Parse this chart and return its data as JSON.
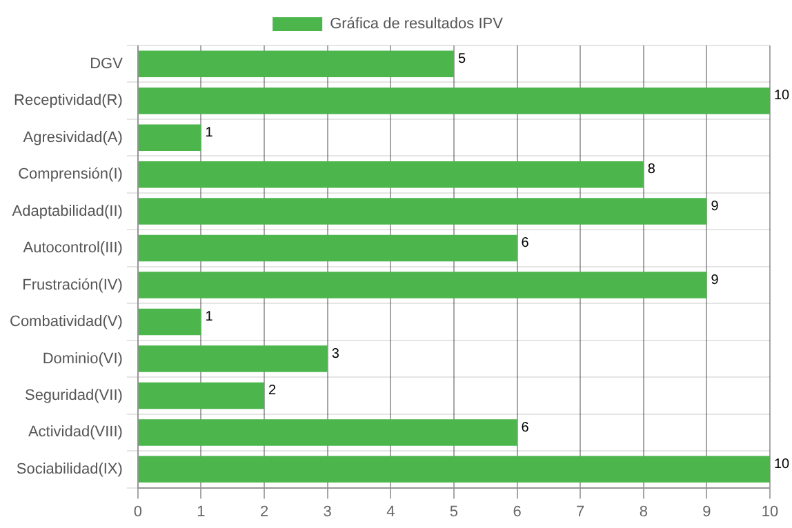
{
  "chart_data": {
    "type": "bar",
    "orientation": "horizontal",
    "categories": [
      "DGV",
      "Receptividad(R)",
      "Agresividad(A)",
      "Comprensión(I)",
      "Adaptabilidad(II)",
      "Autocontrol(III)",
      "Frustración(IV)",
      "Combatividad(V)",
      "Dominio(VI)",
      "Seguridad(VII)",
      "Actividad(VIII)",
      "Sociabilidad(IX)"
    ],
    "series": [
      {
        "name": "Gráfica de resultados IPV",
        "color": "#4cb54c",
        "values": [
          5,
          10,
          1,
          8,
          9,
          6,
          9,
          1,
          3,
          2,
          6,
          10
        ]
      }
    ],
    "xlim": [
      0,
      10
    ],
    "xticks": [
      0,
      1,
      2,
      3,
      4,
      5,
      6,
      7,
      8,
      9,
      10
    ],
    "grid": true,
    "legend": "top",
    "data_labels": true
  }
}
